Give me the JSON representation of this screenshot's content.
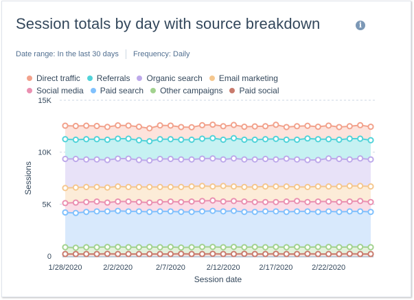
{
  "header": {
    "title": "Session totals by day with source breakdown",
    "info_icon": "info-icon"
  },
  "meta": {
    "date_range_label": "Date range:",
    "date_range_value": "In the last 30 days",
    "frequency_label": "Frequency:",
    "frequency_value": "Daily"
  },
  "chart_data": {
    "type": "area",
    "stacked": false,
    "title": "Session totals by day with source breakdown",
    "xlabel": "Session date",
    "ylabel": "Sessions",
    "ylim": [
      0,
      15000
    ],
    "yticks": [
      0,
      5000,
      10000,
      15000
    ],
    "ytick_labels": [
      "0",
      "5K",
      "10K",
      "15K"
    ],
    "xtick_labels": [
      "1/28/2020",
      "2/2/2020",
      "2/7/2020",
      "2/12/2020",
      "2/17/2020",
      "2/22/2020"
    ],
    "xtick_indices": [
      0,
      5,
      10,
      15,
      20,
      25
    ],
    "x": [
      "1/28/2020",
      "1/29/2020",
      "1/30/2020",
      "1/31/2020",
      "2/1/2020",
      "2/2/2020",
      "2/3/2020",
      "2/4/2020",
      "2/5/2020",
      "2/6/2020",
      "2/7/2020",
      "2/8/2020",
      "2/9/2020",
      "2/10/2020",
      "2/11/2020",
      "2/12/2020",
      "2/13/2020",
      "2/14/2020",
      "2/15/2020",
      "2/16/2020",
      "2/17/2020",
      "2/18/2020",
      "2/19/2020",
      "2/20/2020",
      "2/21/2020",
      "2/22/2020",
      "2/23/2020",
      "2/24/2020",
      "2/25/2020",
      "2/26/2020"
    ],
    "grid": true,
    "legend_position": "top-left",
    "series": [
      {
        "name": "Direct traffic",
        "color": "#f2a28c",
        "fill": "#fde3dc",
        "values": [
          12550,
          12520,
          12550,
          12520,
          12430,
          12580,
          12560,
          12450,
          12300,
          12580,
          12560,
          12420,
          12400,
          12600,
          12650,
          12500,
          12620,
          12450,
          12480,
          12500,
          12640,
          12420,
          12500,
          12540,
          12450,
          12560,
          12420,
          12500,
          12600,
          12450
        ]
      },
      {
        "name": "Referrals",
        "color": "#51d3d9",
        "fill": "#c6f1f2",
        "values": [
          11250,
          11200,
          11250,
          11250,
          11200,
          11300,
          11300,
          11150,
          11050,
          11250,
          11250,
          11200,
          11200,
          11300,
          11350,
          11200,
          11350,
          11200,
          11200,
          11250,
          11280,
          11200,
          11200,
          11320,
          11250,
          11250,
          11200,
          11300,
          11300,
          11150
        ]
      },
      {
        "name": "Organic search",
        "color": "#bda9ea",
        "fill": "#e8e2f8",
        "values": [
          9350,
          9350,
          9300,
          9300,
          9250,
          9380,
          9380,
          9250,
          9200,
          9350,
          9350,
          9300,
          9300,
          9380,
          9400,
          9300,
          9400,
          9300,
          9300,
          9350,
          9300,
          9380,
          9300,
          9250,
          9250,
          9400,
          9350,
          9300,
          9400,
          9300
        ]
      },
      {
        "name": "Email marketing",
        "color": "#f5c78e",
        "fill": "#fcecd8",
        "values": [
          6550,
          6600,
          6650,
          6650,
          6600,
          6700,
          6650,
          6650,
          6650,
          6650,
          6650,
          6650,
          6700,
          6750,
          6700,
          6750,
          6700,
          6650,
          6650,
          6700,
          6700,
          6700,
          6650,
          6650,
          6700,
          6700,
          6700,
          6750,
          6750,
          6700
        ]
      },
      {
        "name": "Social media",
        "color": "#ea90b1",
        "fill": "#fadce6",
        "values": [
          5100,
          5150,
          5200,
          5250,
          5150,
          5250,
          5250,
          5200,
          5150,
          5200,
          5250,
          5200,
          5250,
          5300,
          5350,
          5250,
          5300,
          5250,
          5200,
          5200,
          5200,
          5250,
          5300,
          5200,
          5250,
          5250,
          5200,
          5250,
          5300,
          5200
        ]
      },
      {
        "name": "Paid search",
        "color": "#81c1fd",
        "fill": "#d8e9fc",
        "values": [
          4200,
          4150,
          4250,
          4300,
          4300,
          4350,
          4300,
          4300,
          4250,
          4300,
          4300,
          4250,
          4250,
          4300,
          4350,
          4300,
          4350,
          4250,
          4250,
          4300,
          4300,
          4250,
          4300,
          4300,
          4250,
          4300,
          4250,
          4300,
          4300,
          4250
        ]
      },
      {
        "name": "Other campaigns",
        "color": "#a2d28f",
        "fill": "#e2f1dc",
        "values": [
          850,
          800,
          850,
          850,
          880,
          880,
          850,
          850,
          880,
          850,
          880,
          820,
          850,
          880,
          880,
          850,
          880,
          850,
          880,
          850,
          880,
          850,
          880,
          850,
          880,
          880,
          850,
          880,
          880,
          850
        ]
      },
      {
        "name": "Paid social",
        "color": "#c97b6d",
        "fill": "#f3ddd8",
        "values": [
          200,
          200,
          200,
          200,
          220,
          200,
          200,
          200,
          200,
          200,
          200,
          220,
          200,
          200,
          220,
          200,
          200,
          220,
          200,
          200,
          220,
          200,
          200,
          220,
          200,
          200,
          200,
          220,
          200,
          200
        ]
      }
    ]
  }
}
